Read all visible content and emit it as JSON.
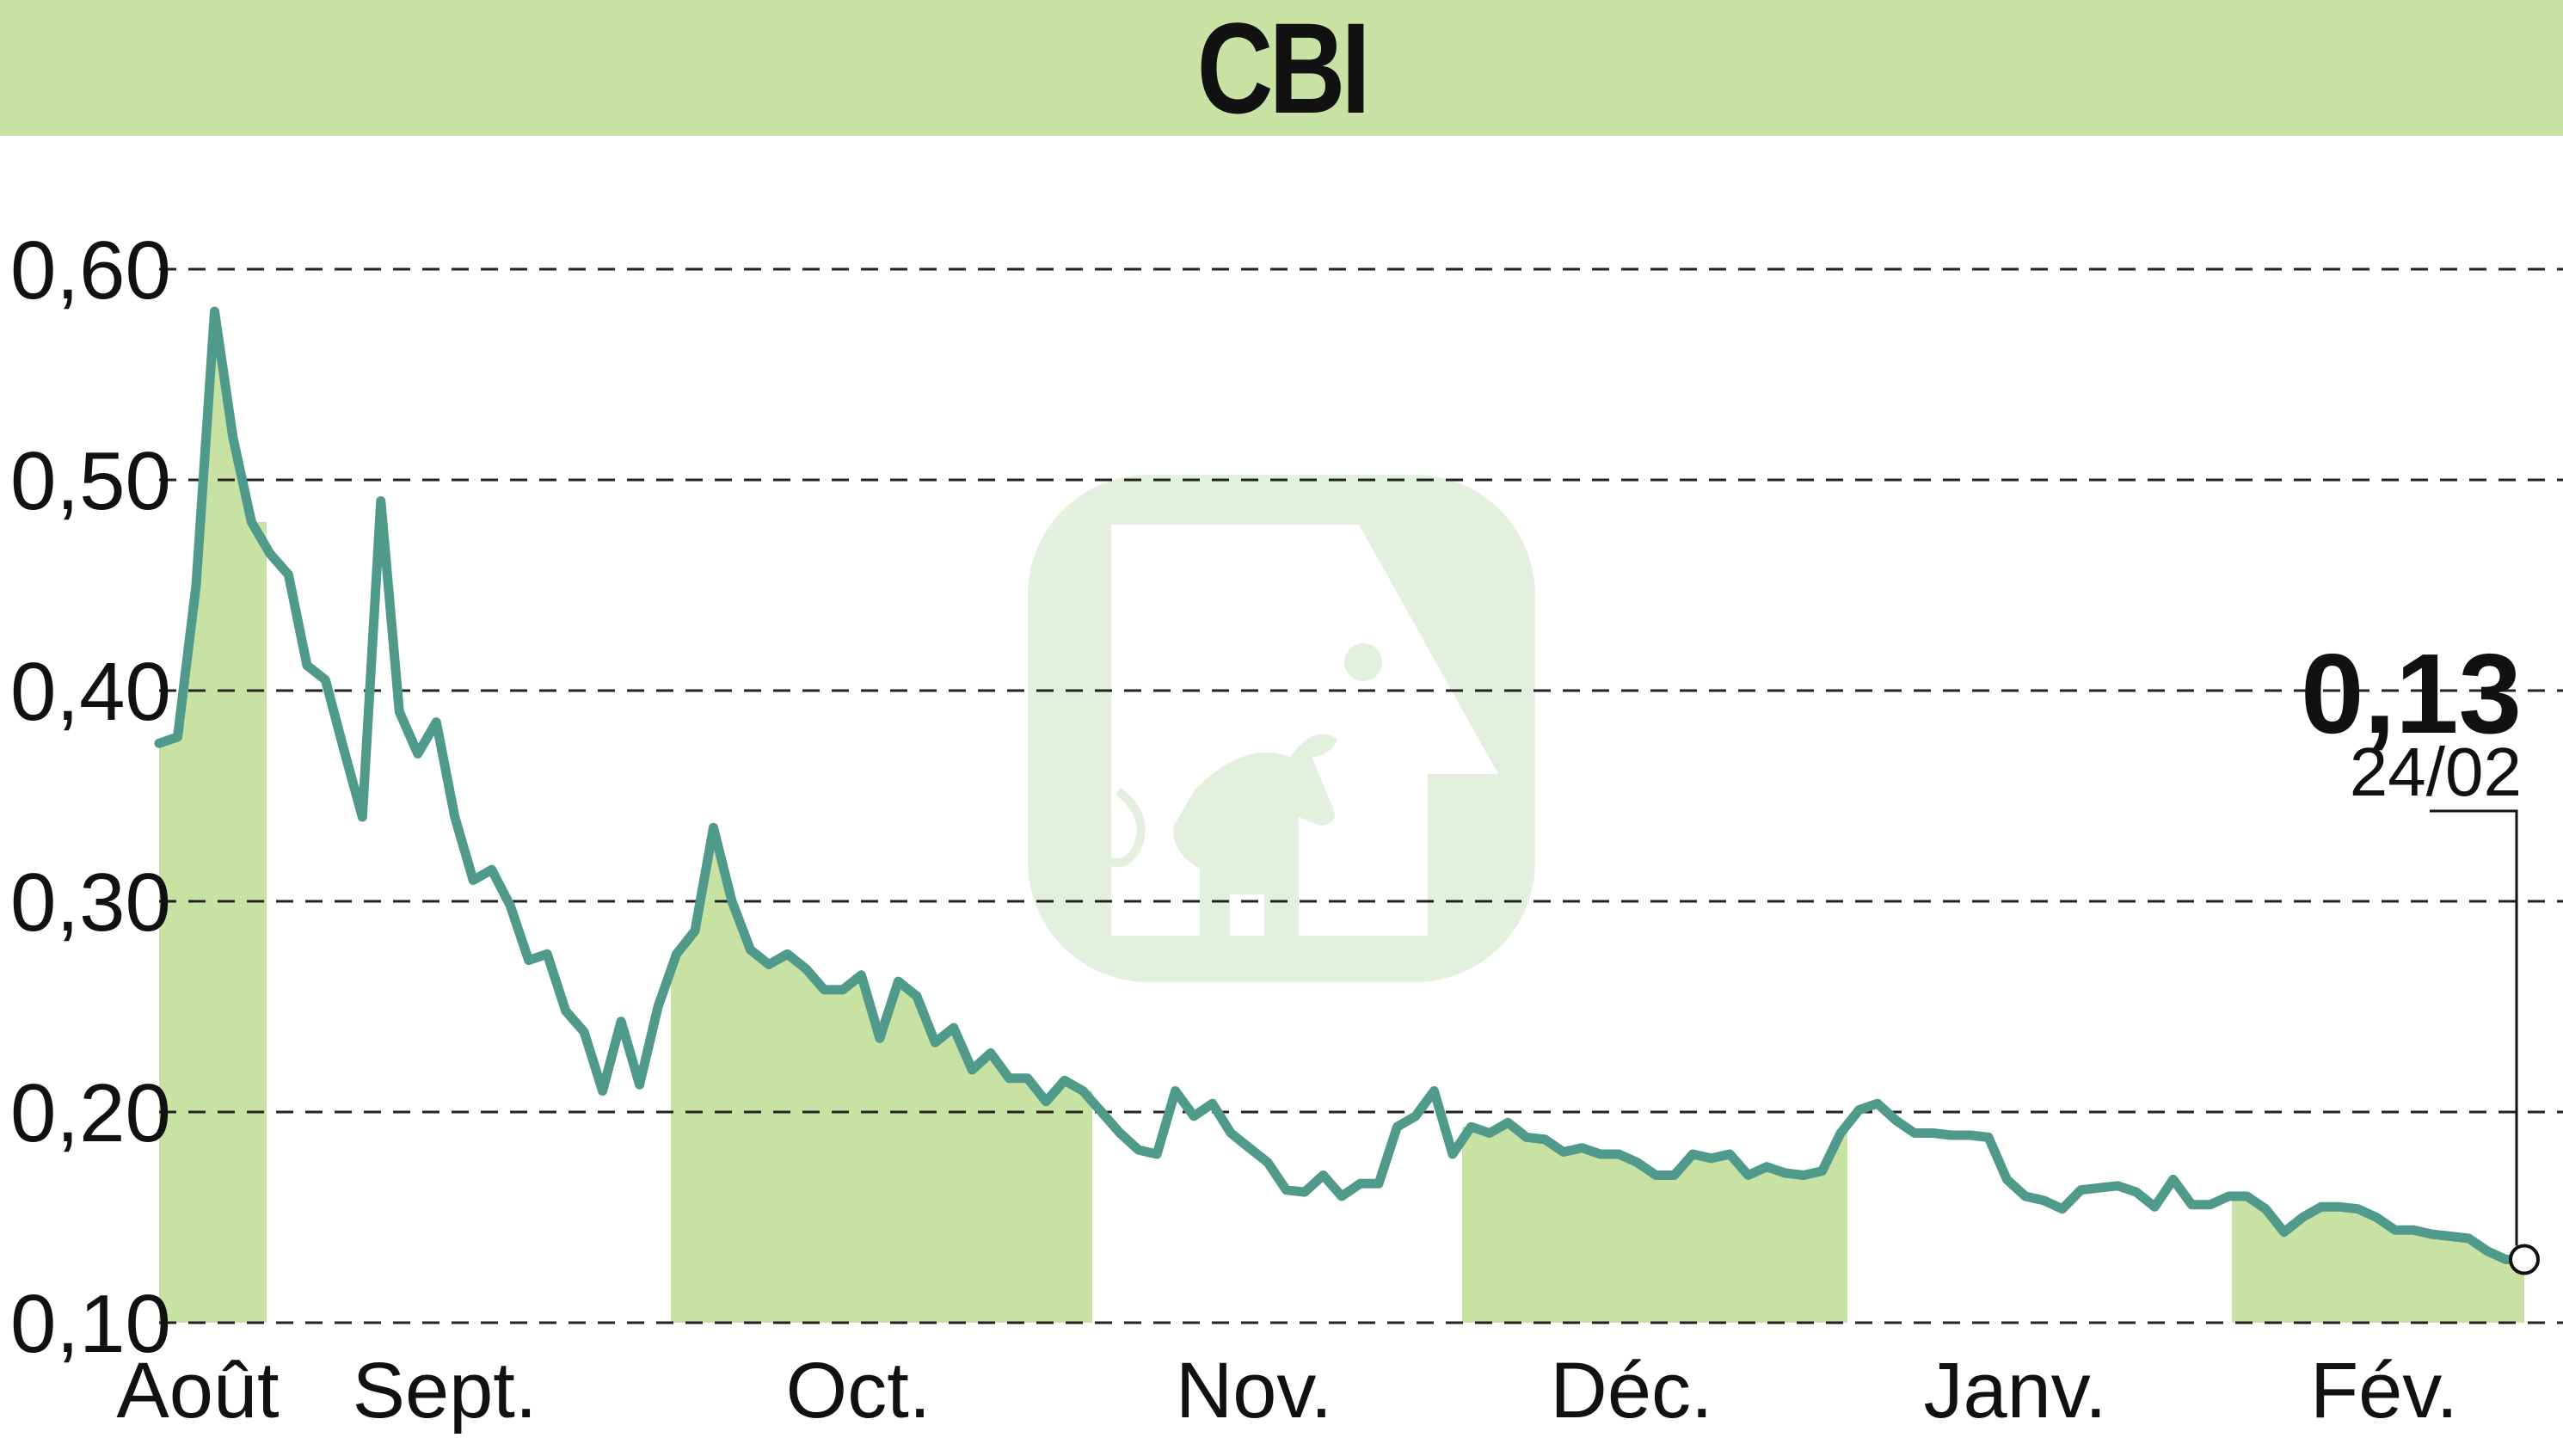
{
  "chart_data": {
    "type": "line",
    "title": "CBI",
    "ylim": [
      0.1,
      0.6
    ],
    "yticks": [
      0.1,
      0.2,
      0.3,
      0.4,
      0.5,
      0.6
    ],
    "ytick_labels": [
      "0,10",
      "0,20",
      "0,30",
      "0,40",
      "0,50",
      "0,60"
    ],
    "grid": "horizontal dashed",
    "months": [
      "Août",
      "Sept.",
      "Oct.",
      "Nov.",
      "Déc.",
      "Janv.",
      "Fév."
    ],
    "month_shading": [
      {
        "month": "Août",
        "shaded": true
      },
      {
        "month": "Sept.",
        "shaded": false
      },
      {
        "month": "Oct.",
        "shaded": true
      },
      {
        "month": "Nov.",
        "shaded": false
      },
      {
        "month": "Déc.",
        "shaded": true
      },
      {
        "month": "Janv.",
        "shaded": false
      },
      {
        "month": "Fév.",
        "shaded": true
      }
    ],
    "series": [
      {
        "values": [
          0.375,
          0.378,
          0.45,
          0.58,
          0.52,
          0.48,
          0.465,
          0.455,
          0.412,
          0.405,
          0.372,
          0.34,
          0.49,
          0.39,
          0.37,
          0.385,
          0.34,
          0.31,
          0.315,
          0.298,
          0.272,
          0.275,
          0.248,
          0.238,
          0.21,
          0.243,
          0.213,
          0.25,
          0.275,
          0.286,
          0.335,
          0.3,
          0.277,
          0.27,
          0.275,
          0.268,
          0.258,
          0.258,
          0.265,
          0.235,
          0.262,
          0.255,
          0.233,
          0.24,
          0.22,
          0.228,
          0.216,
          0.216,
          0.205,
          0.215,
          0.21,
          0.2,
          0.19,
          0.182,
          0.18,
          0.21,
          0.198,
          0.204,
          0.19,
          0.183,
          0.176,
          0.163,
          0.162,
          0.17,
          0.16,
          0.166,
          0.166,
          0.193,
          0.198,
          0.21,
          0.18,
          0.193,
          0.19,
          0.195,
          0.188,
          0.187,
          0.181,
          0.183,
          0.18,
          0.18,
          0.176,
          0.17,
          0.17,
          0.18,
          0.178,
          0.18,
          0.17,
          0.174,
          0.171,
          0.17,
          0.172,
          0.19,
          0.201,
          0.204,
          0.196,
          0.19,
          0.19,
          0.189,
          0.189,
          0.188,
          0.168,
          0.16,
          0.158,
          0.154,
          0.163,
          0.164,
          0.165,
          0.162,
          0.155,
          0.168,
          0.156,
          0.156,
          0.16,
          0.16,
          0.154,
          0.143,
          0.15,
          0.155,
          0.155,
          0.154,
          0.15,
          0.144,
          0.144,
          0.142,
          0.141,
          0.14,
          0.134,
          0.13,
          0.13
        ],
        "color": "#4f9a8a"
      }
    ],
    "last_value_label": "0,13",
    "last_date_label": "24/02",
    "colors": {
      "title_bar": "#c8e2a4",
      "shading": "#c8e2a4",
      "line": "#4f9a8a",
      "grid": "#222222"
    }
  }
}
